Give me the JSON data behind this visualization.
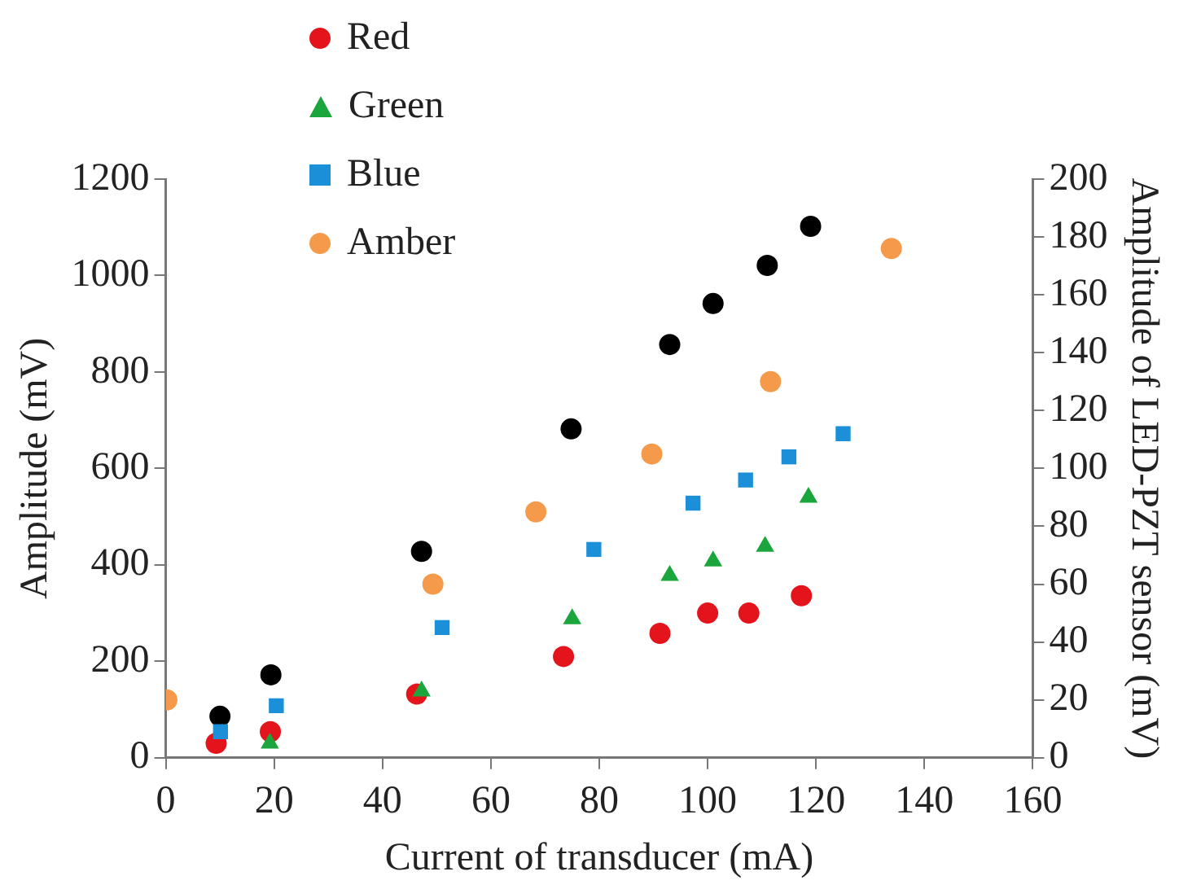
{
  "chart_data": {
    "type": "scatter",
    "xlabel": "Current of transducer (mA)",
    "ylabel": "Amplitude (mV)",
    "y2label": "Amplitude of LED-PZT sensor (mV)",
    "xlim": [
      0,
      160
    ],
    "xticks": [
      0,
      20,
      40,
      60,
      80,
      100,
      120,
      140,
      160
    ],
    "ylim": [
      0,
      1200
    ],
    "yticks": [
      0,
      200,
      400,
      600,
      800,
      1000,
      1200
    ],
    "y2lim": [
      0,
      200
    ],
    "y2ticks": [
      0,
      20,
      40,
      60,
      80,
      100,
      120,
      140,
      160,
      180,
      200
    ],
    "grid": false,
    "legend": "top left",
    "series": [
      {
        "color": "#000000",
        "marker": "circle",
        "x": [
          10,
          19.4,
          47.2,
          74.8,
          93,
          101,
          111,
          119
        ],
        "values": [
          86,
          172,
          428,
          682,
          857,
          942,
          1021,
          1102
        ]
      },
      {
        "name": "Red",
        "color": "#e3141b",
        "marker": "circle",
        "axis": "y2",
        "x": [
          9.3,
          19.3,
          46.3,
          73.4,
          91.2,
          100,
          107.6,
          117.3
        ],
        "values": [
          5,
          9,
          22,
          35,
          43,
          50,
          50,
          56
        ]
      },
      {
        "name": "Green",
        "color": "#1aa63c",
        "marker": "triangle",
        "axis": "y2",
        "x": [
          19.2,
          47.2,
          75,
          93,
          101,
          110.6,
          118.6
        ],
        "values": [
          5,
          23,
          48,
          63,
          68,
          73,
          90
        ]
      },
      {
        "name": "Blue",
        "color": "#1b8fd8",
        "marker": "square",
        "axis": "y2",
        "x": [
          10.1,
          20.4,
          51,
          79,
          97.3,
          107,
          115,
          125
        ],
        "values": [
          9,
          18,
          45,
          72,
          88,
          96,
          104,
          112
        ]
      },
      {
        "name": "Amber",
        "color": "#f59a4a",
        "marker": "circle",
        "axis": "y2",
        "x": [
          0.2,
          49.3,
          68.3,
          89.7,
          111.6,
          133.9
        ],
        "values": [
          20,
          60,
          85,
          105,
          130,
          176
        ]
      }
    ]
  }
}
